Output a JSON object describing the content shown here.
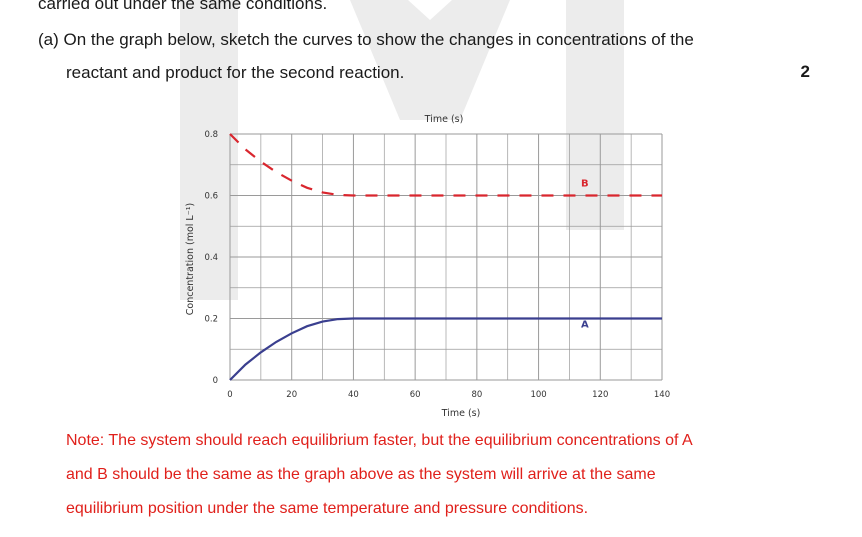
{
  "question": {
    "line_top": "carried out under the same conditions.",
    "part_a_line1": "(a) On the graph below, sketch the curves to show the changes in concentrations of the",
    "part_a_line2": "reactant and product for the second reaction.",
    "marks": "2"
  },
  "note": {
    "line1": "Note: The system should reach equilibrium faster, but the equilibrium concentrations of A",
    "line2": "and B should be the same as the graph above as the system will arrive at the same",
    "line3": "equilibrium position under the same temperature and pressure conditions."
  },
  "colors": {
    "dashed_curve": "#d9262e",
    "solid_curve": "#3a3f8f",
    "note_text": "#e0201b",
    "grid": "#9a9a9a"
  },
  "chart_data": {
    "type": "line",
    "title": "Time (s)",
    "xlabel": "Time (s)",
    "ylabel": "Concentration (mol L⁻¹)",
    "xlim": [
      0,
      140
    ],
    "ylim": [
      0,
      0.8
    ],
    "x_ticks": [
      "0",
      "20",
      "40",
      "60",
      "80",
      "100",
      "120",
      "140"
    ],
    "y_ticks": [
      "0",
      "0.2",
      "0.4",
      "0.6",
      "0.8"
    ],
    "series": [
      {
        "name": "B",
        "style": "dashed",
        "x": [
          0,
          5,
          10,
          15,
          20,
          25,
          30,
          35,
          40,
          60,
          80,
          100,
          120,
          140
        ],
        "y": [
          0.8,
          0.75,
          0.71,
          0.676,
          0.648,
          0.625,
          0.61,
          0.602,
          0.6,
          0.6,
          0.6,
          0.6,
          0.6,
          0.6
        ]
      },
      {
        "name": "A",
        "style": "solid",
        "x": [
          0,
          5,
          10,
          15,
          20,
          25,
          30,
          35,
          40,
          60,
          80,
          100,
          120,
          140
        ],
        "y": [
          0,
          0.05,
          0.09,
          0.124,
          0.152,
          0.175,
          0.19,
          0.198,
          0.2,
          0.2,
          0.2,
          0.2,
          0.2,
          0.2
        ]
      }
    ],
    "series_labels": [
      {
        "text": "B",
        "x": 115,
        "y": 0.63
      },
      {
        "text": "A",
        "x": 115,
        "y": 0.17
      }
    ],
    "grid": true
  }
}
